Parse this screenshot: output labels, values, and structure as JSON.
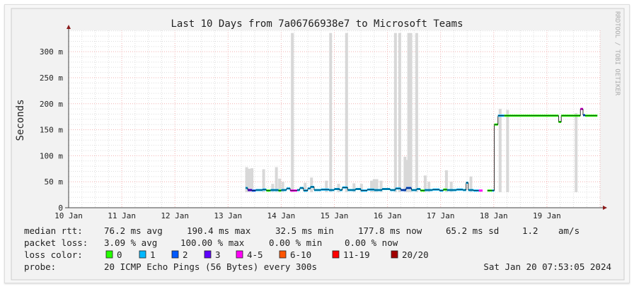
{
  "chart_data": {
    "type": "line",
    "title": "Last 10 Days from 7a06766938e7 to Microsoft Teams",
    "ylabel": "Seconds",
    "xlabel": "",
    "watermark": "RRDTOOL / TOBI OETIKER",
    "ylim_ms": [
      0,
      341
    ],
    "yticks": [
      {
        "v": 0,
        "label": "0"
      },
      {
        "v": 50,
        "label": "50 m"
      },
      {
        "v": 100,
        "label": "100 m"
      },
      {
        "v": 150,
        "label": "150 m"
      },
      {
        "v": 200,
        "label": "200 m"
      },
      {
        "v": 250,
        "label": "250 m"
      },
      {
        "v": 300,
        "label": "300 m"
      }
    ],
    "xlim_days": [
      0,
      10
    ],
    "xticks": [
      "10 Jan",
      "11 Jan",
      "12 Jan",
      "13 Jan",
      "14 Jan",
      "15 Jan",
      "16 Jan",
      "17 Jan",
      "18 Jan",
      "19 Jan"
    ],
    "grid": true,
    "loss_colors": [
      "#26ff00",
      "#00b8ff",
      "#0059ff",
      "#5e00ff",
      "#ff00f7",
      "#ff5500",
      "#ff0000",
      "#a10000"
    ],
    "smoke": [
      [
        3.35,
        78
      ],
      [
        3.4,
        75
      ],
      [
        3.45,
        76
      ],
      [
        3.67,
        74
      ],
      [
        3.84,
        46
      ],
      [
        3.91,
        78
      ],
      [
        3.97,
        56
      ],
      [
        4.03,
        50
      ],
      [
        4.21,
        336
      ],
      [
        4.45,
        48
      ],
      [
        4.57,
        58
      ],
      [
        4.85,
        52
      ],
      [
        4.93,
        336
      ],
      [
        5.08,
        46
      ],
      [
        5.23,
        336
      ],
      [
        5.37,
        47
      ],
      [
        5.51,
        46
      ],
      [
        5.7,
        52
      ],
      [
        5.75,
        55
      ],
      [
        5.8,
        55
      ],
      [
        5.88,
        52
      ],
      [
        6.15,
        336
      ],
      [
        6.23,
        336
      ],
      [
        6.33,
        98
      ],
      [
        6.37,
        92
      ],
      [
        6.4,
        336
      ],
      [
        6.44,
        336
      ],
      [
        6.55,
        336
      ],
      [
        6.71,
        62
      ],
      [
        6.78,
        50
      ],
      [
        7.11,
        72
      ],
      [
        7.2,
        50
      ],
      [
        7.57,
        60
      ],
      [
        8.12,
        190
      ],
      [
        8.26,
        188
      ],
      [
        9.55,
        182
      ]
    ],
    "median": [
      [
        3.33,
        38,
        1
      ],
      [
        3.37,
        34,
        3
      ],
      [
        3.45,
        33,
        2
      ],
      [
        3.52,
        34,
        1
      ],
      [
        3.65,
        35,
        1
      ],
      [
        3.72,
        33,
        0
      ],
      [
        3.8,
        34,
        1
      ],
      [
        3.95,
        33,
        0
      ],
      [
        4.0,
        34,
        1
      ],
      [
        4.1,
        37,
        1
      ],
      [
        4.17,
        33,
        4
      ],
      [
        4.3,
        34,
        1
      ],
      [
        4.35,
        38,
        1
      ],
      [
        4.42,
        33,
        1
      ],
      [
        4.5,
        37,
        1
      ],
      [
        4.55,
        40,
        1
      ],
      [
        4.62,
        34,
        1
      ],
      [
        4.75,
        35,
        1
      ],
      [
        4.9,
        34,
        1
      ],
      [
        5.0,
        36,
        1
      ],
      [
        5.1,
        34,
        1
      ],
      [
        5.15,
        39,
        1
      ],
      [
        5.25,
        34,
        1
      ],
      [
        5.4,
        36,
        1
      ],
      [
        5.5,
        33,
        1
      ],
      [
        5.62,
        35,
        1
      ],
      [
        5.75,
        34,
        1
      ],
      [
        5.9,
        36,
        1
      ],
      [
        6.05,
        34,
        1
      ],
      [
        6.15,
        37,
        1
      ],
      [
        6.25,
        34,
        2
      ],
      [
        6.35,
        38,
        2
      ],
      [
        6.45,
        34,
        1
      ],
      [
        6.55,
        36,
        1
      ],
      [
        6.62,
        33,
        0
      ],
      [
        6.7,
        34,
        1
      ],
      [
        6.85,
        35,
        1
      ],
      [
        6.98,
        33,
        1
      ],
      [
        7.05,
        35,
        0
      ],
      [
        7.12,
        34,
        1
      ],
      [
        7.3,
        35,
        1
      ],
      [
        7.42,
        34,
        1
      ],
      [
        7.48,
        48,
        1
      ],
      [
        7.52,
        34,
        1
      ],
      [
        7.62,
        33,
        1
      ],
      [
        7.72,
        33,
        4
      ],
      [
        7.79,
        null,
        0
      ],
      [
        7.88,
        33,
        0
      ],
      [
        7.97,
        33,
        1
      ],
      [
        8.01,
        160,
        0
      ],
      [
        8.08,
        177,
        1
      ],
      [
        8.2,
        177,
        0
      ],
      [
        9.2,
        177,
        0
      ],
      [
        9.22,
        165,
        0
      ],
      [
        9.27,
        177,
        0
      ],
      [
        9.6,
        177,
        0
      ],
      [
        9.63,
        190,
        4
      ],
      [
        9.68,
        178,
        2
      ],
      [
        9.72,
        177,
        0
      ],
      [
        9.95,
        177,
        0
      ]
    ]
  },
  "legend": {
    "median_rtt": {
      "label": "median rtt:",
      "avg": "76.2 ms avg",
      "max": "190.4 ms max",
      "min": "32.5 ms min",
      "now": "177.8 ms now",
      "sd": "65.2 ms sd",
      "ams_value": "1.2",
      "ams_unit": "am/s"
    },
    "packet_loss": {
      "label": "packet loss:",
      "avg": "3.09 % avg",
      "max": "100.00 % max",
      "min": "0.00 % min",
      "now": "0.00 % now"
    },
    "loss_color": {
      "label": "loss color:",
      "items": [
        "0",
        "1",
        "2",
        "3",
        "4-5",
        "6-10",
        "11-19",
        "20/20"
      ]
    },
    "probe": {
      "label": "probe:",
      "value": "20 ICMP Echo Pings (56 Bytes) every 300s",
      "timestamp": "Sat Jan 20 07:53:05 2024"
    }
  }
}
